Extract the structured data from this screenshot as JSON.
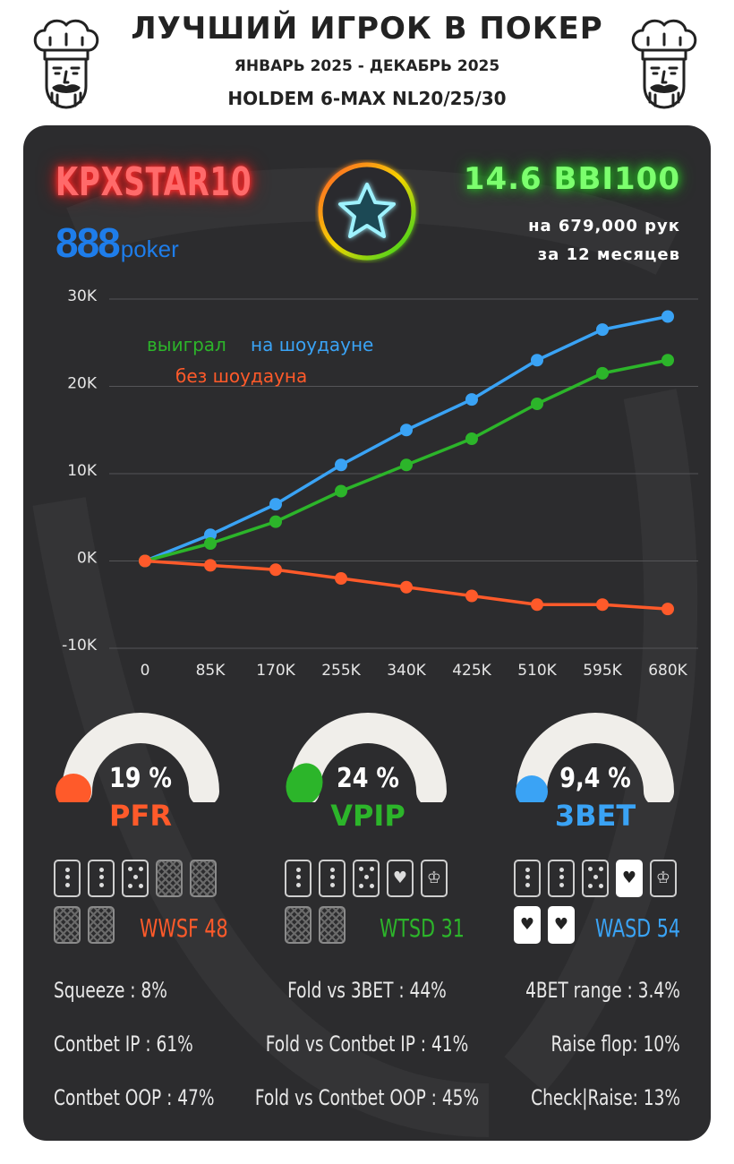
{
  "header": {
    "title": "ЛУЧШИЙ ИГРОК В ПОКЕР",
    "period": "ЯНВАРЬ 2025 - ДЕКАБРЬ 2025",
    "game": "HOLDEM 6-MAX NL20/25/30"
  },
  "player": {
    "name": "KPXSTAR10",
    "room_number": "888",
    "room_word": "poker",
    "winrate": "14.6 BBI100",
    "hands": "на 679,000 рук",
    "months": "за  12 месяцев"
  },
  "colors": {
    "red": "#ff5a2a",
    "green": "#2cb52a",
    "blue": "#3aa3f5",
    "background": "#2c2c2e"
  },
  "chart_data": {
    "type": "line",
    "x": [
      "0",
      "85K",
      "170K",
      "255K",
      "340K",
      "425K",
      "510K",
      "595K",
      "680K"
    ],
    "yticks": [
      "30K",
      "20K",
      "10K",
      "0K",
      "-10K"
    ],
    "ylim": [
      -10000,
      30000
    ],
    "legend": {
      "won": "выиграл",
      "showdown": "на шоудауне",
      "non_showdown": "без шоудауна"
    },
    "series": [
      {
        "name": "на шоудауне",
        "color": "#3aa3f5",
        "values": [
          0,
          3000,
          6500,
          11000,
          15000,
          18500,
          23000,
          26500,
          28000
        ]
      },
      {
        "name": "выиграл",
        "color": "#2cb52a",
        "values": [
          0,
          2000,
          4500,
          8000,
          11000,
          14000,
          18000,
          21500,
          23000
        ]
      },
      {
        "name": "без шоудауна",
        "color": "#ff5a2a",
        "values": [
          0,
          -500,
          -1000,
          -2000,
          -3000,
          -4000,
          -5000,
          -5000,
          -5500
        ]
      }
    ]
  },
  "gauges": [
    {
      "value": "19 %",
      "label": "PFR",
      "fraction": 0.19
    },
    {
      "value": "24 %",
      "label": "VPIP",
      "fraction": 0.24
    },
    {
      "value": "9,4 %",
      "label": "3BET",
      "fraction": 0.094
    }
  ],
  "substats": {
    "wwsf": "WWSF 48",
    "wtsd": "WTSD 31",
    "wasd": "WASD 54"
  },
  "stats": {
    "squeeze": "Squeeze : 8%",
    "fold_vs_3bet": "Fold vs 3BET : 44%",
    "fourbet_range": "4BET range : 3.4%",
    "contbet_ip": "Contbet IP : 61%",
    "fold_vs_contbet_ip": "Fold vs Contbet IP : 41%",
    "raise_flop": "Raise flop: 10%",
    "contbet_oop": "Contbet OOP : 47%",
    "fold_vs_contbet_oop": "Fold vs Contbet OOP : 45%",
    "check_raise": "Check|Raise: 13%"
  }
}
